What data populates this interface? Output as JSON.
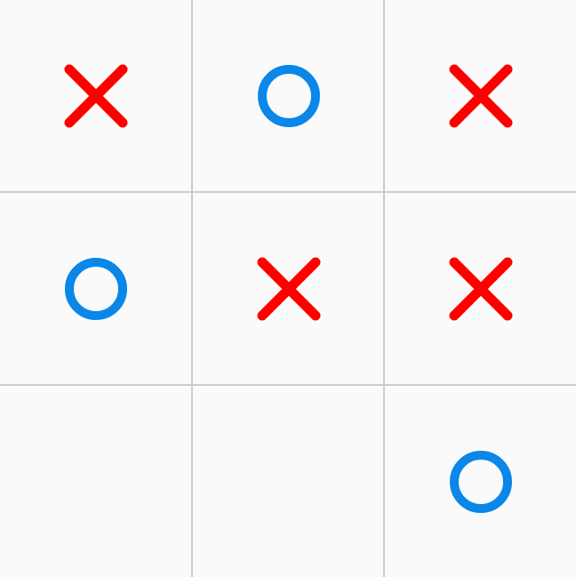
{
  "board": {
    "cells": [
      "X",
      "O",
      "X",
      "O",
      "X",
      "X",
      "",
      "",
      "O"
    ]
  },
  "colors": {
    "x": "#ff0000",
    "o": "#0a87e8",
    "grid": "#cccccc",
    "background": "#fafafa"
  },
  "icons": {
    "x": "x-mark-icon",
    "o": "o-mark-icon"
  }
}
